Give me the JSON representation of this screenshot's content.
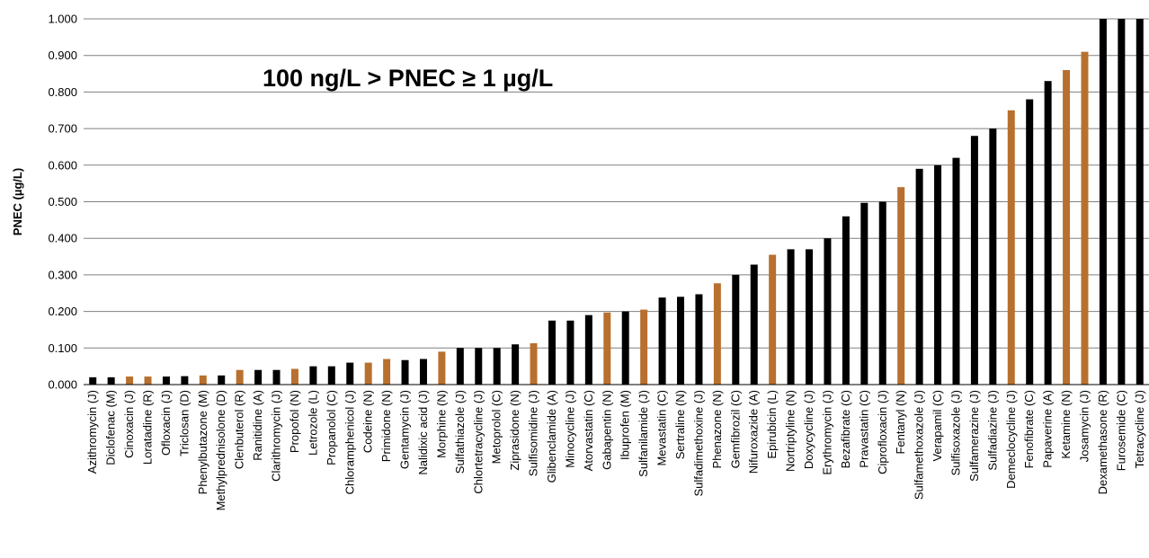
{
  "chart_data": {
    "type": "bar",
    "title": "",
    "annotation": "100 ng/L > PNEC ≥ 1 µg/L",
    "xlabel": "",
    "ylabel": "PNEC (µg/L)",
    "ylim": [
      0,
      1
    ],
    "yticks": [
      "0.000",
      "0.100",
      "0.200",
      "0.300",
      "0.400",
      "0.500",
      "0.600",
      "0.700",
      "0.800",
      "0.900",
      "1.000"
    ],
    "grid": true,
    "legend": "none",
    "colors": {
      "black": "#000000",
      "brown": "#B8702F",
      "grid": "#808080"
    },
    "categories": [
      "Azithromycin (J)",
      "Diclofenac (M)",
      "Cinoxacin (J)",
      "Loratadine (R)",
      "Ofloxacin (J)",
      "Triclosan (D)",
      "Phenylbutazone (M)",
      "Methylprednisolone (D)",
      "Clenbuterol (R)",
      "Ranitidine (A)",
      "Clarithromycin (J)",
      "Propofol (N)",
      "Letrozole (L)",
      "Propanolol (C)",
      "Chloramphenicol (J)",
      "Codeine (N)",
      "Primidone (N)",
      "Gentamycin (J)",
      "Nalidixic acid (J)",
      "Morphine (N)",
      "Sulfathiazole (J)",
      "Chlortetracycline (J)",
      "Metoprolol (C)",
      "Ziprasidone (N)",
      "Sulfisomidine (J)",
      "Glibenclamide (A)",
      "Minocycline (J)",
      "Atorvastatin (C)",
      "Gabapentin (N)",
      "Ibuprofen (M)",
      "Sulfanilamide (J)",
      "Mevastatin (C)",
      "Sertraline (N)",
      "Sulfadimethoxine (J)",
      "Phenazone (N)",
      "Gemfibrozil (C)",
      "Nifuroxazide (A)",
      "Epirubicin (L)",
      "Nortriptyline (N)",
      "Doxycycline (J)",
      "Erythromycin (J)",
      "Bezafibrate (C)",
      "Pravastatin (C)",
      "Ciprofloxacin (J)",
      "Fentanyl (N)",
      "Sulfamethoxazole (J)",
      "Verapamil (C)",
      "Sulfisoxazole (J)",
      "Sulfamerazine (J)",
      "Sulfadiazine (J)",
      "Demeclocycline (J)",
      "Fenofibrate (C)",
      "Papaverine (A)",
      "Ketamine (N)",
      "Josamycin (J)",
      "Dexamethasone (R)",
      "Furosemide (C)",
      "Tetracycline (J)"
    ],
    "values": [
      0.02,
      0.02,
      0.022,
      0.022,
      0.022,
      0.023,
      0.025,
      0.025,
      0.04,
      0.04,
      0.04,
      0.043,
      0.05,
      0.05,
      0.06,
      0.06,
      0.07,
      0.067,
      0.07,
      0.09,
      0.1,
      0.1,
      0.1,
      0.11,
      0.113,
      0.175,
      0.175,
      0.19,
      0.197,
      0.2,
      0.205,
      0.238,
      0.24,
      0.247,
      0.277,
      0.3,
      0.328,
      0.355,
      0.37,
      0.37,
      0.4,
      0.46,
      0.497,
      0.5,
      0.54,
      0.59,
      0.6,
      0.62,
      0.68,
      0.7,
      0.75,
      0.78,
      0.83,
      0.86,
      0.91,
      1.0,
      1.0,
      1.0
    ],
    "bar_colors": [
      "black",
      "black",
      "brown",
      "brown",
      "black",
      "black",
      "brown",
      "black",
      "brown",
      "black",
      "black",
      "brown",
      "black",
      "black",
      "black",
      "brown",
      "brown",
      "black",
      "black",
      "brown",
      "black",
      "black",
      "black",
      "black",
      "brown",
      "black",
      "black",
      "black",
      "brown",
      "black",
      "brown",
      "black",
      "black",
      "black",
      "brown",
      "black",
      "black",
      "brown",
      "black",
      "black",
      "black",
      "black",
      "black",
      "black",
      "brown",
      "black",
      "black",
      "black",
      "black",
      "black",
      "brown",
      "black",
      "black",
      "brown",
      "brown",
      "black",
      "black",
      "black"
    ]
  }
}
